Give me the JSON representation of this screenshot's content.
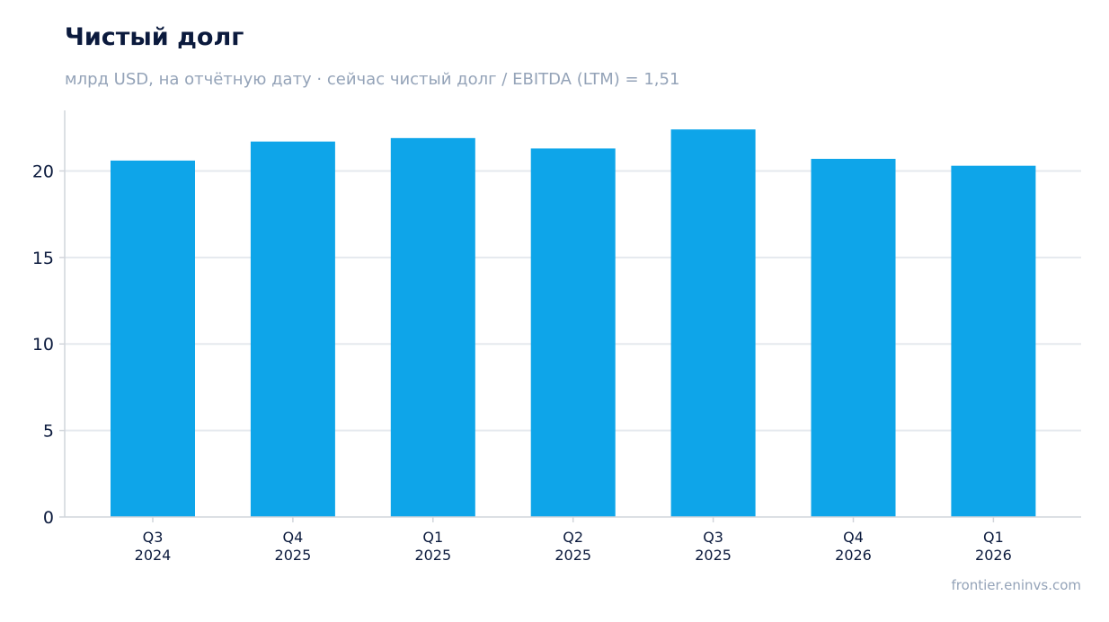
{
  "header": {
    "title": "Чистый долг",
    "subtitle": "млрд USD, на отчётную дату · сейчас чистый долг / EBITDA (LTM) = 1,51"
  },
  "footer": {
    "source": "frontier.eninvs.com"
  },
  "colors": {
    "bar": "#0ea5e9",
    "grid": "#e5e9ee",
    "axis": "#d1d5db",
    "text": "#0b1a3d",
    "muted": "#94a3b8"
  },
  "chart_data": {
    "type": "bar",
    "categories": [
      [
        "Q3",
        "2024"
      ],
      [
        "Q4",
        "2025"
      ],
      [
        "Q1",
        "2025"
      ],
      [
        "Q2",
        "2025"
      ],
      [
        "Q3",
        "2025"
      ],
      [
        "Q4",
        "2026"
      ],
      [
        "Q1",
        "2026"
      ]
    ],
    "values": [
      20.6,
      21.7,
      21.9,
      21.3,
      22.4,
      20.7,
      20.3
    ],
    "title": "Чистый долг",
    "subtitle": "млрд USD, на отчётную дату · сейчас чистый долг / EBITDA (LTM) = 1,51",
    "xlabel": "",
    "ylabel": "",
    "ylim": [
      0,
      23.5
    ],
    "yticks": [
      0,
      5,
      10,
      15,
      20
    ],
    "grid": true,
    "legend": "none"
  }
}
